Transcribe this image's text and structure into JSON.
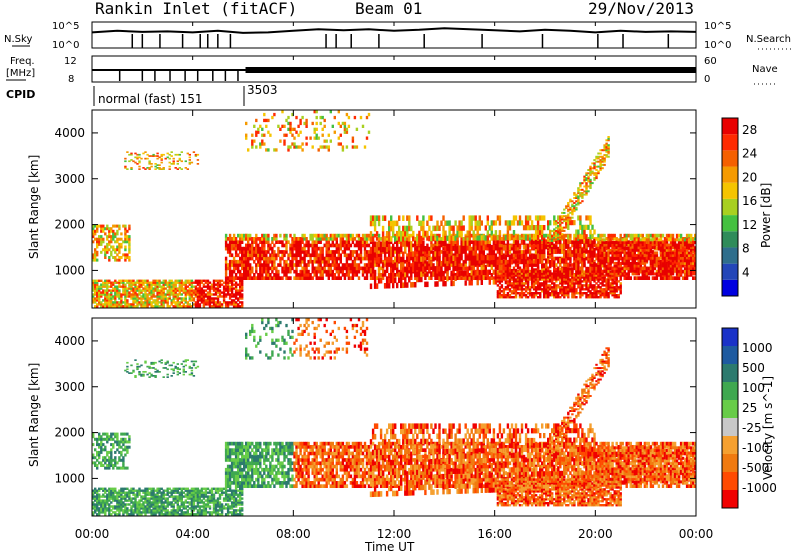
{
  "header": {
    "station": "Rankin Inlet (fitACF)",
    "beam": "Beam 01",
    "date": "29/Nov/2013"
  },
  "strip": {
    "nsky_label": "N.Sky",
    "nsky_ticks": [
      "10^5",
      "10^0"
    ],
    "nsearch_label": "N.Search",
    "nsearch_ticks": [
      "10^5",
      "10^0"
    ],
    "freq_label_1": "Freq.",
    "freq_label_2": "[MHz]",
    "freq_ticks": [
      "12",
      "8"
    ],
    "nave_label": "Nave",
    "nave_ticks": [
      "60",
      "0"
    ],
    "cpid_label": "CPID",
    "cpid_segments": [
      {
        "label": "normal (fast) 151",
        "start_hour": 0.0,
        "end_hour": 6.1
      },
      {
        "label": "3503",
        "start_hour": 6.1,
        "end_hour": 24.0
      }
    ]
  },
  "x_ticks": [
    "00:00",
    "04:00",
    "08:00",
    "12:00",
    "16:00",
    "20:00",
    "00:00"
  ],
  "x_label": "Time UT",
  "colors": {
    "power": [
      "#0000e0",
      "#2446b8",
      "#2f6e8c",
      "#2f8c5a",
      "#44c040",
      "#a8d020",
      "#f5c400",
      "#f59a00",
      "#f56000",
      "#ff2a00",
      "#e80000"
    ],
    "velocity": [
      "#1a32c8",
      "#1e5aa0",
      "#2c7a6e",
      "#3fa850",
      "#68cc48",
      "#c8c8c8",
      "#f5a030",
      "#f07a10",
      "#ff4a00",
      "#f00000"
    ]
  },
  "chart_data": [
    {
      "type": "line",
      "title": "",
      "x": [
        0,
        1,
        2,
        3,
        4,
        5,
        6,
        7,
        8,
        9,
        10,
        11,
        12,
        13,
        14,
        15,
        16,
        17,
        18,
        19,
        20,
        21,
        22,
        23,
        24
      ],
      "series": [
        {
          "name": "N.Sky",
          "values": [
            3,
            3.3,
            3.1,
            3.2,
            3.0,
            3.3,
            2.9,
            3.0,
            3.3,
            3.6,
            3.4,
            3.6,
            3.3,
            3.5,
            3.8,
            3.6,
            3.4,
            3.2,
            3.5,
            3.3,
            3.0,
            3.3,
            3.1,
            3.2,
            3.1
          ]
        }
      ],
      "ylabel": "N.Sky",
      "ylim": [
        0,
        5
      ]
    },
    {
      "type": "line",
      "title": "",
      "x": [
        0,
        6.1,
        6.1,
        24
      ],
      "series": [
        {
          "name": "Nave",
          "values": [
            30,
            30,
            33,
            33
          ]
        }
      ],
      "ylabel": "Freq. [MHz]",
      "ylim": [
        0,
        60
      ]
    },
    {
      "type": "heatmap",
      "title": "",
      "xlabel": "",
      "ylabel": "Slant Range [km]",
      "y_ticks": [
        "1000",
        "2000",
        "3000",
        "4000"
      ],
      "xlim": [
        0,
        24
      ],
      "ylim": [
        180,
        4500
      ],
      "colorbar_label": "Power [dB]",
      "colorbar_ticks": [
        "4",
        "8",
        "12",
        "16",
        "20",
        "24",
        "28"
      ]
    },
    {
      "type": "heatmap",
      "title": "",
      "xlabel": "Time UT",
      "ylabel": "Slant Range [km]",
      "y_ticks": [
        "1000",
        "2000",
        "3000",
        "4000"
      ],
      "xlim": [
        0,
        24
      ],
      "ylim": [
        180,
        4500
      ],
      "colorbar_label": "Velocity [m s^-1]",
      "colorbar_ticks": [
        "1000",
        "500",
        "100",
        "25",
        "-25",
        "-100",
        "-500",
        "-1000"
      ]
    }
  ]
}
